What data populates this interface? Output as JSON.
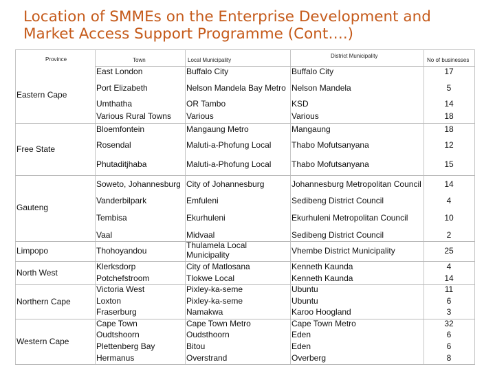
{
  "title": {
    "line1": "Location of SMMEs on the Enterprise Development and",
    "line2": "Market Access Support Programme (Cont….)"
  },
  "headers": {
    "province": "Province",
    "town": "Town",
    "local_municipality": "Local Municipality",
    "district_municipality": "District Municipality",
    "no_of_businesses": "No of businesses"
  },
  "provinces": [
    "Eastern Cape",
    "Free State",
    "Gauteng",
    "Limpopo",
    "North West",
    "Northern Cape",
    "Western Cape"
  ],
  "rows": [
    {
      "town": "East London",
      "local": "Buffalo City",
      "district": "Buffalo City",
      "count": "17"
    },
    {
      "town": "Port Elizabeth",
      "local": "Nelson Mandela Bay Metro",
      "district": "Nelson Mandela",
      "count": "5"
    },
    {
      "town": "Umthatha",
      "local": "OR Tambo",
      "district": "KSD",
      "count": "14"
    },
    {
      "town": "Various Rural Towns",
      "local": "Various",
      "district": "Various",
      "count": "18"
    },
    {
      "town": "Bloemfontein",
      "local": "Mangaung Metro",
      "district": "Mangaung",
      "count": "18"
    },
    {
      "town": "Rosendal",
      "local": "Maluti-a-Phofung Local",
      "district": "Thabo Mofutsanyana",
      "count": "12"
    },
    {
      "town": "Phutaditjhaba",
      "local": "Maluti-a-Phofung Local",
      "district": "Thabo Mofutsanyana",
      "count": "15"
    },
    {
      "town": "Soweto, Johannesburg",
      "local": "City of Johannesburg",
      "district": "Johannesburg Metropolitan Council",
      "count": "14"
    },
    {
      "town": "Vanderbilpark",
      "local": "Emfuleni",
      "district": "Sedibeng District Council",
      "count": "4"
    },
    {
      "town": "Tembisa",
      "local": "Ekurhuleni",
      "district": "Ekurhuleni Metropolitan Council",
      "count": "10"
    },
    {
      "town": "Vaal",
      "local": "Midvaal",
      "district": "Sedibeng District Council",
      "count": "2"
    },
    {
      "town": "Thohoyandou",
      "local": "Thulamela Local Municipality",
      "district": "Vhembe District Municipality",
      "count": "25"
    },
    {
      "town": "Klerksdorp",
      "local": "City of Matlosana",
      "district": "Kenneth Kaunda",
      "count": "4"
    },
    {
      "town": "Potchefstroom",
      "local": "Tlokwe Local",
      "district": "Kenneth Kaunda",
      "count": "14"
    },
    {
      "town": "Victoria West",
      "local": "Pixley-ka-seme",
      "district": "Ubuntu",
      "count": "11"
    },
    {
      "town": "Loxton",
      "local": "Pixley-ka-seme",
      "district": "Ubuntu",
      "count": "6"
    },
    {
      "town": "Fraserburg",
      "local": "Namakwa",
      "district": "Karoo Hoogland",
      "count": "3"
    },
    {
      "town": "Cape Town",
      "local": "Cape Town Metro",
      "district": "Cape Town Metro",
      "count": "32"
    },
    {
      "town": "Oudtshoorn",
      "local": "Oudsthoorn",
      "district": "Eden",
      "count": "6"
    },
    {
      "town": "Plettenberg Bay",
      "local": "Bitou",
      "district": "Eden",
      "count": "6"
    },
    {
      "town": "Hermanus",
      "local": "Overstrand",
      "district": "Overberg",
      "count": "8"
    }
  ]
}
